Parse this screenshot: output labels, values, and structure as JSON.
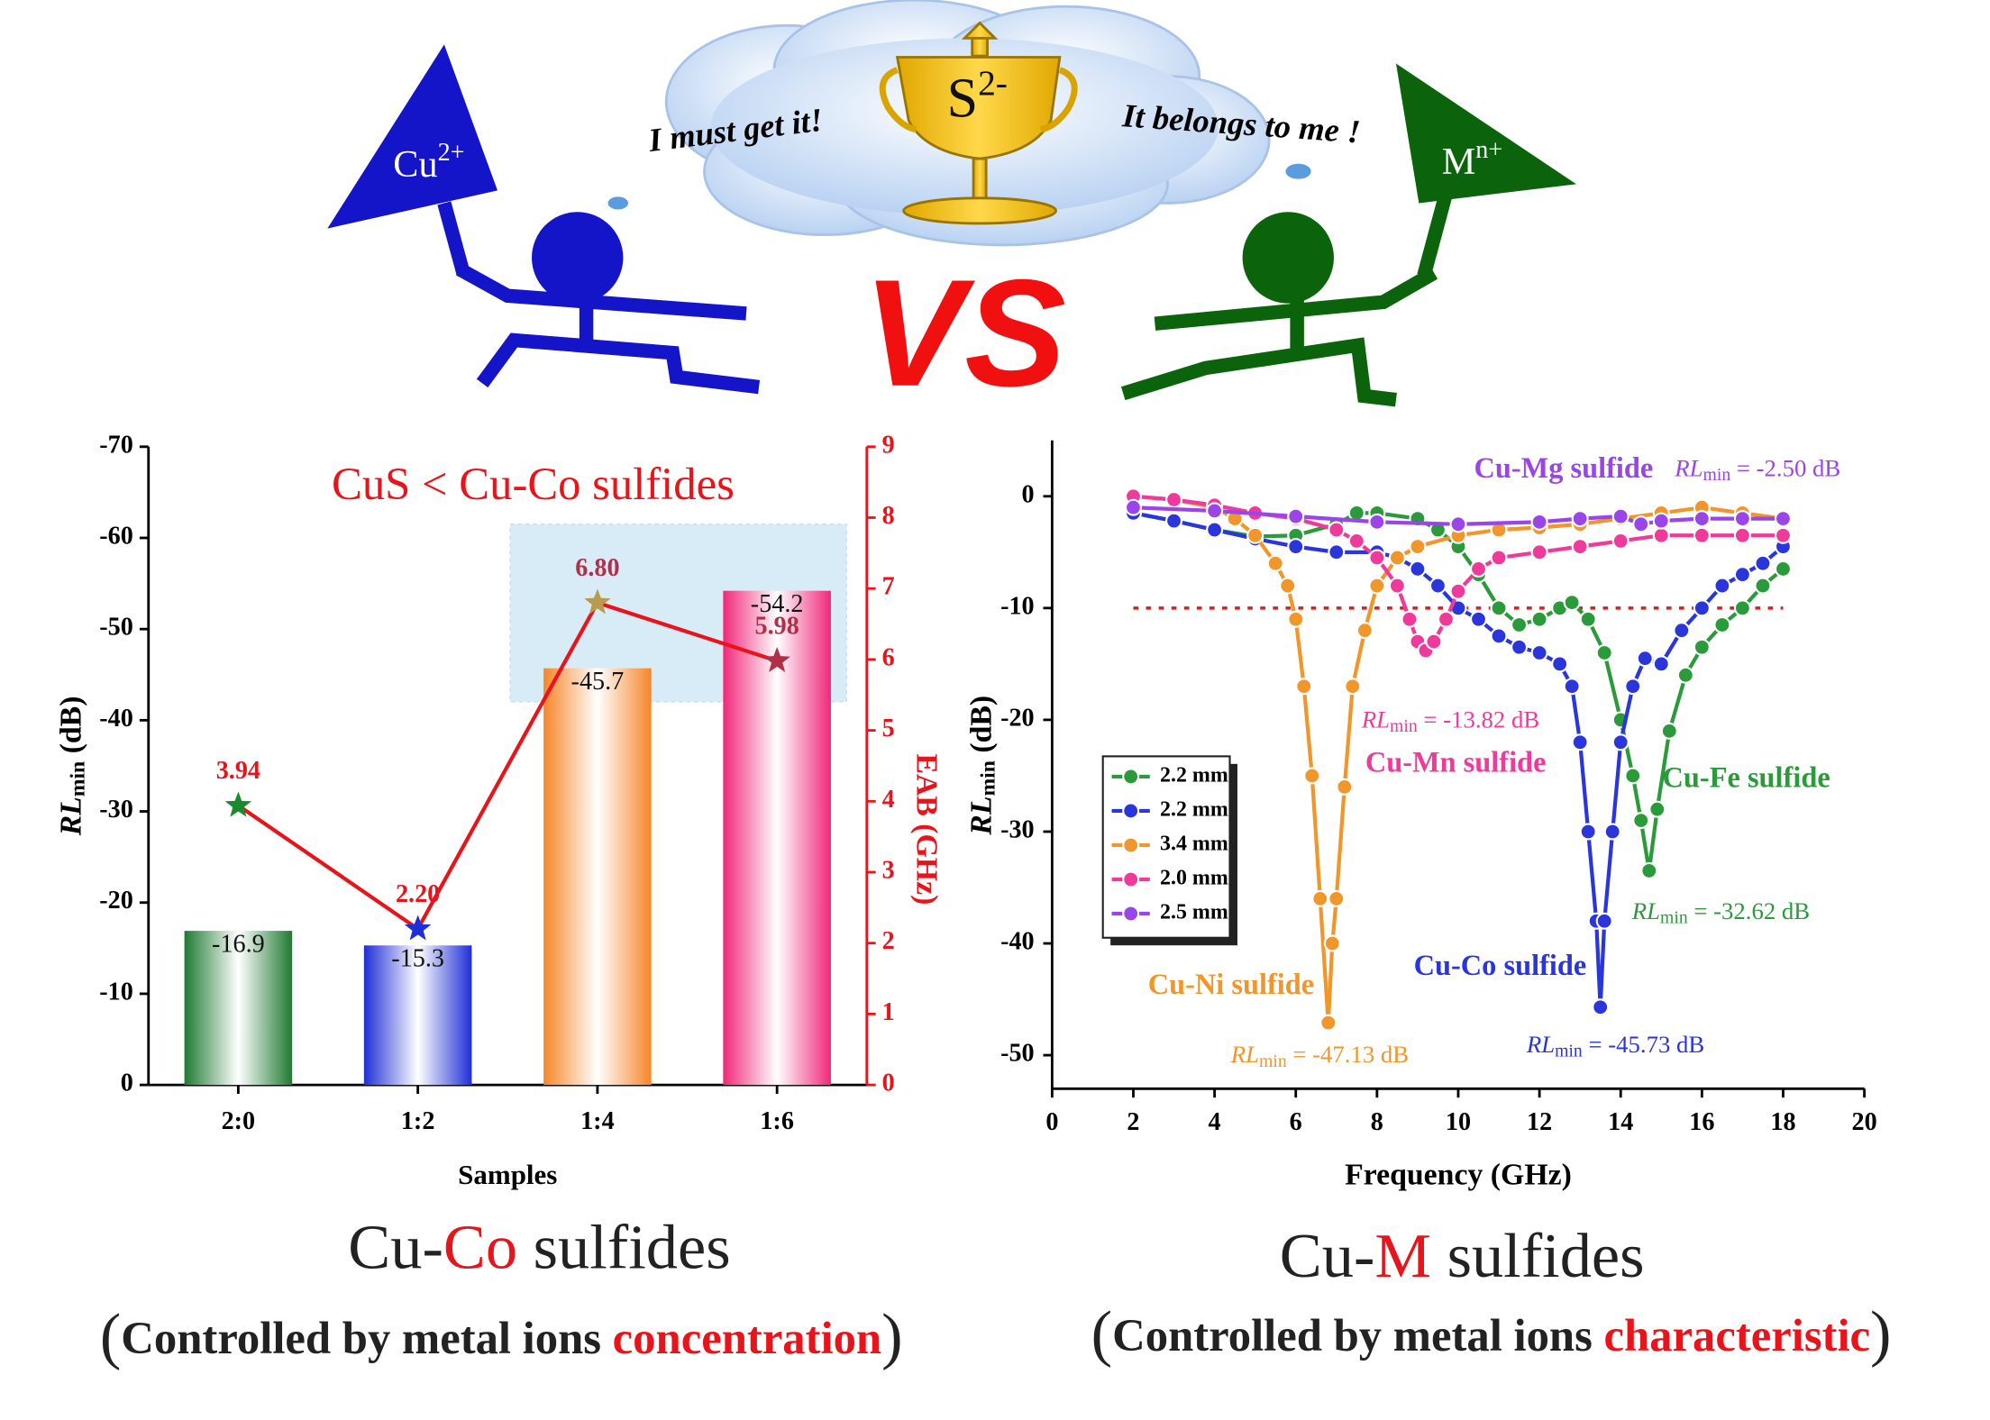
{
  "illustration": {
    "left_ion": {
      "base": "Cu",
      "sup": "2+"
    },
    "right_ion": {
      "base": "M",
      "sup": "n+"
    },
    "prize": {
      "base": "S",
      "sup": "2-"
    },
    "left_speech": "I  must get it!",
    "right_speech": "It belongs to me !",
    "versus": "VS"
  },
  "chart_data": [
    {
      "type": "bar",
      "title": "CuS < Cu-Co sulfides",
      "xlabel": "Samples",
      "ylabel": {
        "main": "RL",
        "sub": "min",
        "unit": " (dB)"
      },
      "y2label": "EAB (GHz)",
      "categories": [
        "2:0",
        "1:2",
        "1:4",
        "1:6"
      ],
      "values": [
        -16.9,
        -15.3,
        -45.7,
        -54.2
      ],
      "colors": [
        "#1e7a32",
        "#1f2fd6",
        "#f5862a",
        "#f0287a"
      ],
      "ylim": [
        0,
        -70
      ],
      "yticks": [
        0,
        -10,
        -20,
        -30,
        -40,
        -50,
        -60,
        -70
      ],
      "y2lim": [
        0,
        9
      ],
      "y2ticks": [
        0,
        1,
        2,
        3,
        4,
        5,
        6,
        7,
        8,
        9
      ],
      "y2color": "#e8141b",
      "line": {
        "axis": "y2",
        "values": [
          3.94,
          2.2,
          6.8,
          5.98
        ],
        "value_labels": [
          "3.94",
          "2.20",
          "6.80",
          "5.98"
        ],
        "color": "#e8141b",
        "marker_colors": [
          "#1a8a2a",
          "#1f2fd6",
          "#b89a50",
          "#b0304a"
        ],
        "label_colors": [
          "#e8141b",
          "#e8141b",
          "#b0304a",
          "#b0304a"
        ]
      }
    },
    {
      "type": "line",
      "xlabel": "Frequency (GHz)",
      "ylabel": {
        "main": "RL",
        "sub": "min",
        "unit": " (dB)"
      },
      "rl_symbol": {
        "main": "RL",
        "sub": "min"
      },
      "xlim": [
        0,
        20
      ],
      "xticks": [
        0,
        2,
        4,
        6,
        8,
        10,
        12,
        14,
        16,
        18,
        20
      ],
      "ylim": [
        -53,
        5
      ],
      "yticks": [
        0,
        -10,
        -20,
        -30,
        -40,
        -50
      ],
      "hline": -10,
      "hline_color": "#d42020",
      "series": [
        {
          "name": "2.2 mm",
          "color": "#2a9a3a",
          "label": "Cu-Fe sulfide",
          "rl_value": " = -32.62 dB",
          "x": [
            2,
            3,
            4,
            5,
            6,
            7,
            7.5,
            8,
            9,
            9.5,
            10,
            10.5,
            11,
            11.5,
            12,
            12.5,
            12.8,
            13.2,
            13.6,
            14,
            14.3,
            14.5,
            14.7,
            14.9,
            15.2,
            15.6,
            16,
            16.5,
            17,
            17.5,
            18
          ],
          "values": [
            -1.5,
            -2.2,
            -3,
            -3.6,
            -3.5,
            -2.5,
            -1.5,
            -1.5,
            -2,
            -3,
            -4.5,
            -7,
            -10,
            -11.5,
            -11,
            -10,
            -9.5,
            -11,
            -14,
            -20,
            -25,
            -29,
            -33.5,
            -28,
            -21,
            -16,
            -13.5,
            -11.5,
            -10,
            -8,
            -6.5
          ]
        },
        {
          "name": "2.2 mm",
          "color": "#2a35dc",
          "label": "Cu-Co sulfide",
          "rl_value": " = -45.73 dB",
          "x": [
            2,
            3,
            4,
            5,
            6,
            7,
            8,
            8.5,
            9,
            9.5,
            10,
            10.5,
            11,
            11.5,
            12,
            12.5,
            12.8,
            13,
            13.2,
            13.4,
            13.5,
            13.6,
            13.8,
            14,
            14.3,
            14.6,
            15,
            15.5,
            16,
            16.5,
            17,
            17.5,
            18
          ],
          "values": [
            -1.5,
            -2.2,
            -3,
            -3.8,
            -4.5,
            -5,
            -5,
            -5.5,
            -6.5,
            -8,
            -10,
            -11,
            -12.5,
            -13.5,
            -14,
            -15,
            -17,
            -22,
            -30,
            -38,
            -45.7,
            -38,
            -30,
            -22,
            -17,
            -14.5,
            -15,
            -12,
            -10,
            -8,
            -7,
            -6,
            -4.5
          ]
        },
        {
          "name": "3.4 mm",
          "color": "#f0962a",
          "label": "Cu-Ni sulfide",
          "rl_value": " = -47.13 dB",
          "x": [
            2,
            3,
            4,
            4.5,
            5,
            5.5,
            5.8,
            6,
            6.2,
            6.4,
            6.6,
            6.8,
            6.9,
            7,
            7.2,
            7.4,
            7.7,
            8,
            8.5,
            9,
            10,
            11,
            12,
            13,
            14,
            15,
            16,
            17,
            18
          ],
          "values": [
            0,
            -0.3,
            -1,
            -2,
            -3.5,
            -6,
            -8,
            -11,
            -17,
            -25,
            -36,
            -47.1,
            -40,
            -36,
            -26,
            -17,
            -12,
            -8,
            -5.5,
            -4.5,
            -3.5,
            -3,
            -2.8,
            -2.5,
            -2,
            -1.5,
            -1,
            -1.5,
            -2
          ]
        },
        {
          "name": "2.0 mm",
          "color": "#ee3a9a",
          "label": "Cu-Mn sulfide",
          "rl_value": " = -13.82 dB",
          "x": [
            2,
            3,
            4,
            5,
            6,
            7,
            7.5,
            8,
            8.5,
            8.8,
            9,
            9.2,
            9.4,
            9.7,
            10,
            10.5,
            11,
            12,
            13,
            14,
            15,
            16,
            17,
            18
          ],
          "values": [
            0,
            -0.3,
            -0.8,
            -1.5,
            -2,
            -3,
            -4,
            -5.5,
            -8,
            -11,
            -13,
            -13.8,
            -13,
            -11,
            -8.5,
            -6.5,
            -5.5,
            -5,
            -4.5,
            -4,
            -3.5,
            -3.5,
            -3.5,
            -3.5
          ]
        },
        {
          "name": "2.5 mm",
          "color": "#9a45e8",
          "label": "Cu-Mg sulfide",
          "rl_value": " = -2.50 dB",
          "x": [
            2,
            4,
            6,
            8,
            10,
            12,
            13,
            14,
            14.5,
            15,
            16,
            17,
            18
          ],
          "values": [
            -1,
            -1.3,
            -1.8,
            -2.3,
            -2.5,
            -2.3,
            -2,
            -1.8,
            -2.5,
            -2.2,
            -2,
            -2,
            -2
          ]
        }
      ]
    }
  ],
  "captions": [
    {
      "title": [
        "Cu-",
        "Co",
        " sulfides"
      ],
      "note": [
        "(",
        "Controlled by metal ions ",
        "concentration",
        ")"
      ]
    },
    {
      "title": [
        "Cu-",
        "M",
        " sulfides"
      ],
      "note": [
        "(",
        "Controlled by metal ions ",
        "characteristic",
        ")"
      ]
    }
  ]
}
